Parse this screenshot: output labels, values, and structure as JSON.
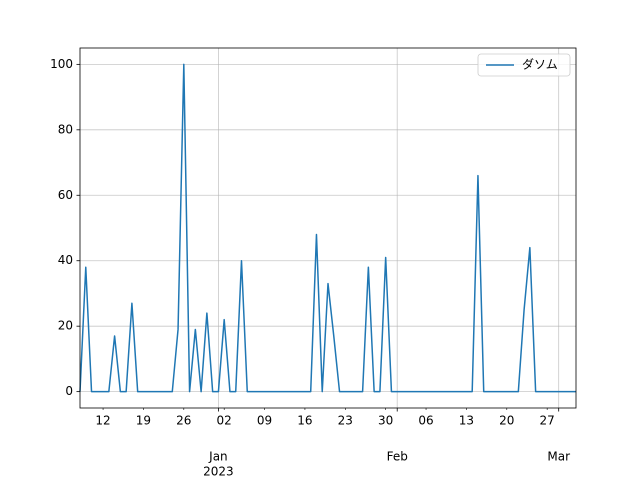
{
  "chart_data": {
    "type": "line",
    "x": [
      "2022-12-08",
      "2022-12-09",
      "2022-12-10",
      "2022-12-11",
      "2022-12-12",
      "2022-12-13",
      "2022-12-14",
      "2022-12-15",
      "2022-12-16",
      "2022-12-17",
      "2022-12-18",
      "2022-12-19",
      "2022-12-20",
      "2022-12-21",
      "2022-12-22",
      "2022-12-23",
      "2022-12-24",
      "2022-12-25",
      "2022-12-26",
      "2022-12-27",
      "2022-12-28",
      "2022-12-29",
      "2022-12-30",
      "2022-12-31",
      "2023-01-01",
      "2023-01-02",
      "2023-01-03",
      "2023-01-04",
      "2023-01-05",
      "2023-01-06",
      "2023-01-07",
      "2023-01-08",
      "2023-01-09",
      "2023-01-10",
      "2023-01-11",
      "2023-01-12",
      "2023-01-13",
      "2023-01-14",
      "2023-01-15",
      "2023-01-16",
      "2023-01-17",
      "2023-01-18",
      "2023-01-19",
      "2023-01-20",
      "2023-01-21",
      "2023-01-22",
      "2023-01-23",
      "2023-01-24",
      "2023-01-25",
      "2023-01-26",
      "2023-01-27",
      "2023-01-28",
      "2023-01-29",
      "2023-01-30",
      "2023-01-31",
      "2023-02-01",
      "2023-02-02",
      "2023-02-03",
      "2023-02-04",
      "2023-02-05",
      "2023-02-06",
      "2023-02-07",
      "2023-02-08",
      "2023-02-09",
      "2023-02-10",
      "2023-02-11",
      "2023-02-12",
      "2023-02-13",
      "2023-02-14",
      "2023-02-15",
      "2023-02-16",
      "2023-02-17",
      "2023-02-18",
      "2023-02-19",
      "2023-02-20",
      "2023-02-21",
      "2023-02-22",
      "2023-02-23",
      "2023-02-24",
      "2023-02-25",
      "2023-02-26",
      "2023-02-27",
      "2023-02-28",
      "2023-03-01",
      "2023-03-02",
      "2023-03-03",
      "2023-03-04"
    ],
    "series": [
      {
        "name": "ダソム",
        "color": "#1f77b4",
        "values": [
          0,
          38,
          0,
          0,
          0,
          0,
          17,
          0,
          0,
          27,
          0,
          0,
          0,
          0,
          0,
          0,
          0,
          19,
          100,
          0,
          19,
          0,
          24,
          0,
          0,
          22,
          0,
          0,
          40,
          0,
          0,
          0,
          0,
          0,
          0,
          0,
          0,
          0,
          0,
          0,
          0,
          48,
          0,
          33,
          17,
          0,
          0,
          0,
          0,
          0,
          38,
          0,
          0,
          41,
          0,
          0,
          0,
          0,
          0,
          0,
          0,
          0,
          0,
          0,
          0,
          0,
          0,
          0,
          0,
          66,
          0,
          0,
          0,
          0,
          0,
          0,
          0,
          25,
          44,
          0,
          0,
          0,
          0,
          0,
          0,
          0,
          0
        ]
      }
    ],
    "xlim": [
      "2022-12-08",
      "2023-03-04"
    ],
    "xticks": [
      {
        "value": "2022-12-12",
        "label": "12"
      },
      {
        "value": "2022-12-19",
        "label": "19"
      },
      {
        "value": "2022-12-26",
        "label": "26"
      },
      {
        "value": "2023-01-02",
        "label": "02"
      },
      {
        "value": "2023-01-09",
        "label": "09"
      },
      {
        "value": "2023-01-16",
        "label": "16"
      },
      {
        "value": "2023-01-23",
        "label": "23"
      },
      {
        "value": "2023-01-30",
        "label": "30"
      },
      {
        "value": "2023-02-06",
        "label": "06"
      },
      {
        "value": "2023-02-13",
        "label": "13"
      },
      {
        "value": "2023-02-20",
        "label": "20"
      },
      {
        "value": "2023-02-27",
        "label": "27"
      }
    ],
    "xticks_major": [
      {
        "value": "2023-01-01",
        "label": "Jan"
      },
      {
        "value": "2023-02-01",
        "label": "Feb"
      },
      {
        "value": "2023-03-01",
        "label": "Mar"
      }
    ],
    "x_offset_label": "2023",
    "ylim": [
      -5,
      105
    ],
    "yticks": [
      0,
      20,
      40,
      60,
      80,
      100
    ],
    "grid": true,
    "legend": "upper right"
  }
}
